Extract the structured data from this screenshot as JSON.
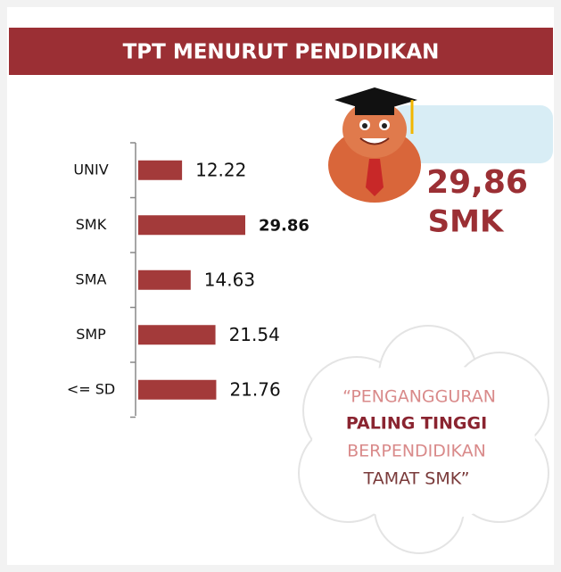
{
  "chart_data": {
    "type": "bar",
    "orientation": "horizontal",
    "title": "TPT MENURUT PENDIDIKAN",
    "categories": [
      "UNIV",
      "SMK",
      "SMA",
      "SMP",
      "<= SD"
    ],
    "values": [
      12.22,
      29.86,
      14.63,
      21.54,
      21.76
    ],
    "color": "#a33a3a",
    "highlight": "SMK",
    "annotations": {
      "value": "29,86",
      "label": "SMK"
    },
    "quote": [
      "“PENGANGGURAN",
      "PALING TINGGI",
      "BERPENDIDIKAN",
      "TAMAT SMK”"
    ]
  }
}
